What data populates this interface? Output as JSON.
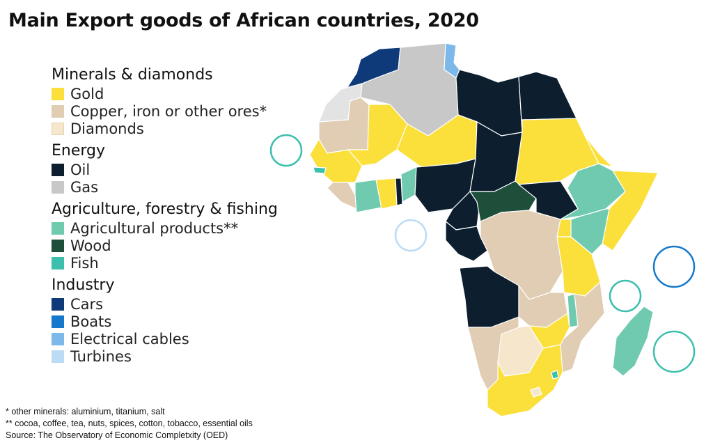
{
  "title": "Main Export goods of African countries, 2020",
  "legend": [
    {
      "group": "Minerals & diamonds",
      "items": [
        {
          "label": "Gold",
          "color": "#fbe03c"
        },
        {
          "label": "Copper, iron or other ores*",
          "color": "#e0cdb4"
        },
        {
          "label": "Diamonds",
          "color": "#f5e6cc"
        }
      ]
    },
    {
      "group": "Energy",
      "items": [
        {
          "label": "Oil",
          "color": "#0d1f2f"
        },
        {
          "label": "Gas",
          "color": "#c8c8c8"
        }
      ]
    },
    {
      "group": "Agriculture, forestry & fishing",
      "items": [
        {
          "label": "Agricultural products**",
          "color": "#6fcab0"
        },
        {
          "label": "Wood",
          "color": "#1e4f3b"
        },
        {
          "label": "Fish",
          "color": "#3dbfae"
        }
      ]
    },
    {
      "group": "Industry",
      "items": [
        {
          "label": "Cars",
          "color": "#0f3a7a"
        },
        {
          "label": "Boats",
          "color": "#1479cc"
        },
        {
          "label": "Electrical cables",
          "color": "#7db8ea"
        },
        {
          "label": "Turbines",
          "color": "#bcdcf5"
        }
      ]
    }
  ],
  "notes": {
    "note1": "* other minerals: aluminium, titanium, salt",
    "note2": "** cocoa, coffee, tea, nuts, spices, cotton, tobacco, essential oils",
    "source": "Source: The Observatory of Economic Completxity (OED)"
  },
  "map_colors": {
    "gold": "#fbe03c",
    "ores": "#e0cdb4",
    "diamonds": "#f5e6cc",
    "oil": "#0d1f2f",
    "gas": "#c8c8c8",
    "agri": "#6fcab0",
    "wood": "#1e4f3b",
    "fish": "#3dbfae",
    "cars": "#0f3a7a",
    "cables": "#7db8ea",
    "unknown": "#e3e3e3",
    "island_circle_fish": "#3dbfae",
    "island_circle_boats": "#1479cc",
    "island_circle_turbines": "#bcdcf5"
  }
}
